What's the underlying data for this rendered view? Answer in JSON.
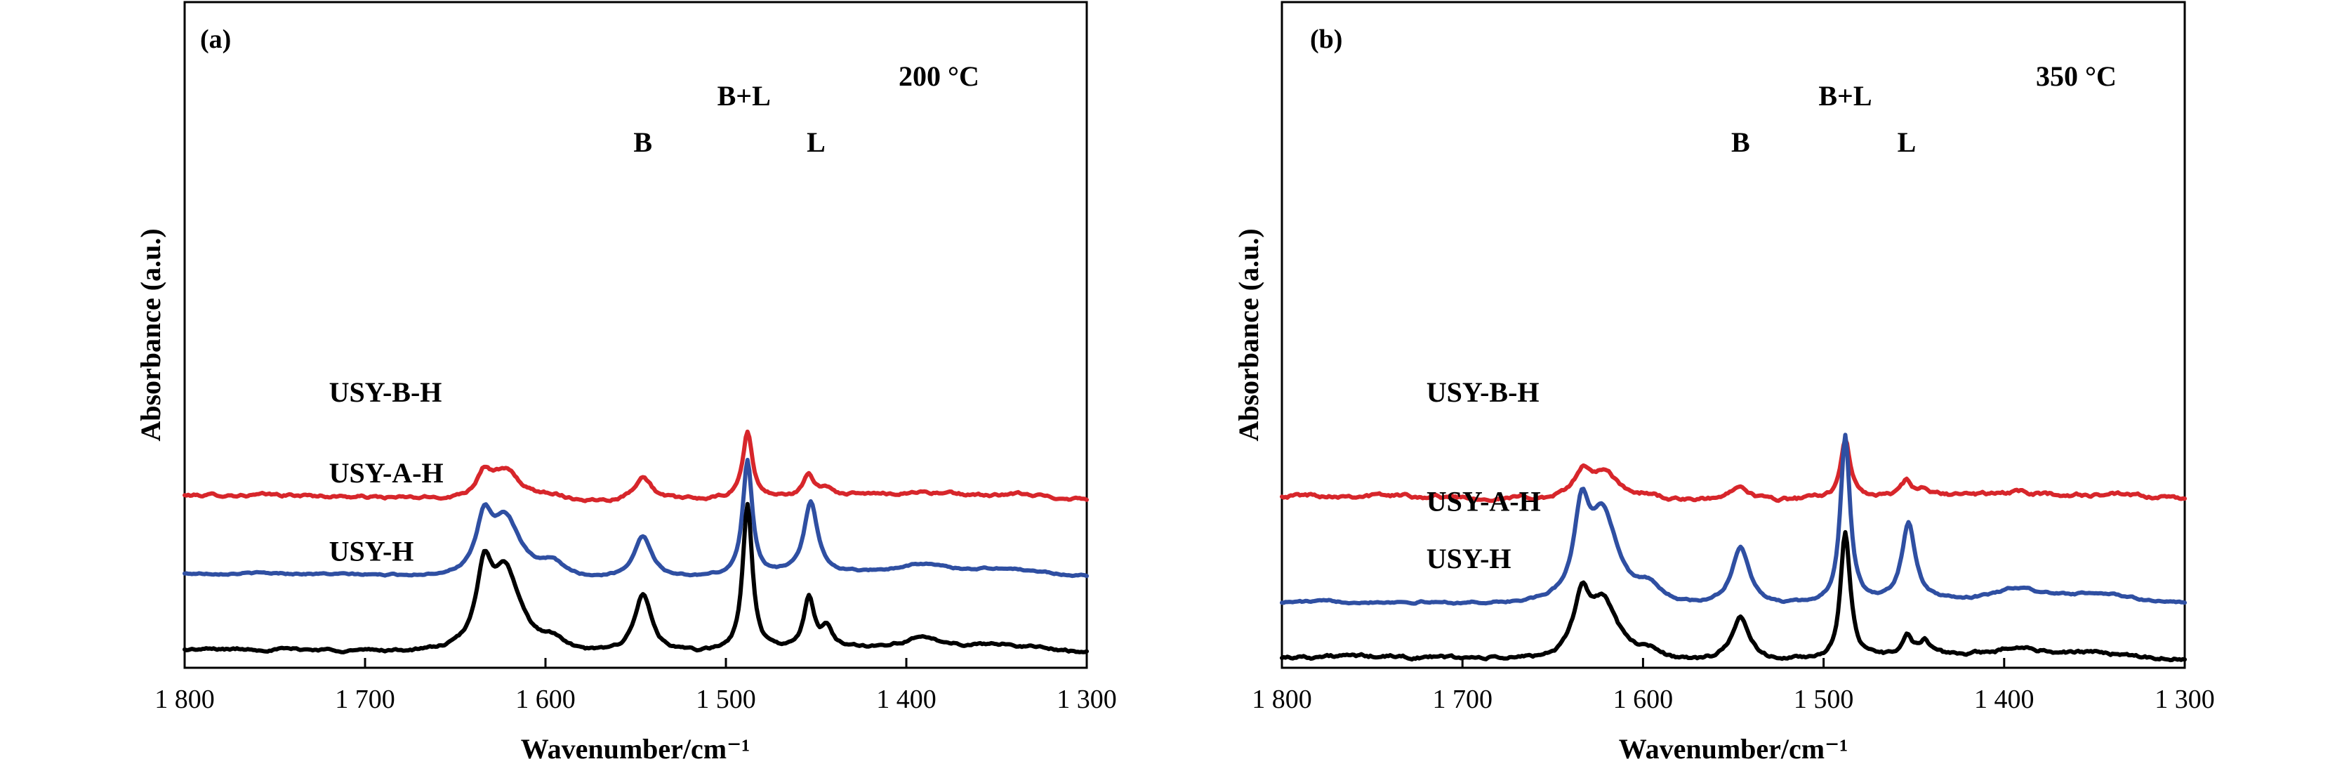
{
  "chart_data": [
    {
      "type": "line",
      "panel_label": "(a)",
      "temperature": "200 °C",
      "xlabel": "Wavenumber/cm⁻¹",
      "ylabel": "Absorbance (a.u.)",
      "xlim": [
        1800,
        1300
      ],
      "x_ticks": [
        1800,
        1700,
        1600,
        1500,
        1400,
        1300
      ],
      "x_tick_labels": [
        "1 800",
        "1 700",
        "1 600",
        "1 500",
        "1 400",
        "1 300"
      ],
      "grid": false,
      "annotations": [
        {
          "text": "B",
          "x": 1546
        },
        {
          "text": "B+L",
          "x": 1490
        },
        {
          "text": "L",
          "x": 1450
        }
      ],
      "series": [
        {
          "name": "USY-B-H",
          "color": "#d7262b",
          "baseline": 3.55,
          "scale": 0.55,
          "noise": 0.035,
          "peaks": [
            [
              1634,
              0.9,
              5
            ],
            [
              1622,
              1.1,
              10
            ],
            [
              1596,
              0.22,
              8
            ],
            [
              1546,
              0.95,
              6
            ],
            [
              1488,
              2.55,
              3.2
            ],
            [
              1454,
              0.8,
              3.5
            ],
            [
              1444,
              0.3,
              4
            ],
            [
              1392,
              0.12,
              14
            ],
            [
              1335,
              0.08,
              10
            ]
          ]
        },
        {
          "name": "USY-A-H",
          "color": "#2f4fa2",
          "baseline": 1.9,
          "scale": 0.95,
          "noise": 0.02,
          "peaks": [
            [
              1634,
              1.1,
              5
            ],
            [
              1622,
              1.3,
              10
            ],
            [
              1596,
              0.3,
              8
            ],
            [
              1546,
              0.95,
              6
            ],
            [
              1488,
              2.55,
              3.2
            ],
            [
              1453,
              1.6,
              4.5
            ],
            [
              1392,
              0.18,
              15
            ],
            [
              1345,
              0.12,
              25
            ]
          ]
        },
        {
          "name": "USY-H",
          "color": "#000000",
          "baseline": 0.3,
          "scale": 1.0,
          "noise": 0.03,
          "peaks": [
            [
              1634,
              1.5,
              5
            ],
            [
              1622,
              1.7,
              10
            ],
            [
              1596,
              0.25,
              8
            ],
            [
              1546,
              1.25,
              6
            ],
            [
              1488,
              3.1,
              3.2
            ],
            [
              1454,
              1.05,
              3.5
            ],
            [
              1444,
              0.4,
              4
            ],
            [
              1392,
              0.2,
              15
            ],
            [
              1345,
              0.12,
              25
            ]
          ]
        }
      ]
    },
    {
      "type": "line",
      "panel_label": "(b)",
      "temperature": "350 °C",
      "xlabel": "Wavenumber/cm⁻¹",
      "ylabel": "Absorbance (a.u.)",
      "xlim": [
        1800,
        1300
      ],
      "x_ticks": [
        1800,
        1700,
        1600,
        1500,
        1400,
        1300
      ],
      "x_tick_labels": [
        "1 800",
        "1 700",
        "1 600",
        "1 500",
        "1 400",
        "1 300"
      ],
      "grid": false,
      "annotations": [
        {
          "text": "B",
          "x": 1546
        },
        {
          "text": "B+L",
          "x": 1488
        },
        {
          "text": "L",
          "x": 1454
        }
      ],
      "series": [
        {
          "name": "USY-B-H",
          "color": "#d7262b",
          "baseline": 3.55,
          "scale": 0.55,
          "noise": 0.045,
          "peaks": [
            [
              1634,
              0.9,
              5
            ],
            [
              1622,
              1.05,
              10
            ],
            [
              1596,
              0.2,
              8
            ],
            [
              1546,
              0.7,
              6
            ],
            [
              1488,
              2.3,
              3.2
            ],
            [
              1454,
              0.55,
              3.5
            ],
            [
              1444,
              0.2,
              4
            ],
            [
              1392,
              0.1,
              14
            ],
            [
              1340,
              0.06,
              10
            ]
          ]
        },
        {
          "name": "USY-A-H",
          "color": "#2f4fa2",
          "baseline": 1.3,
          "scale": 1.0,
          "noise": 0.025,
          "peaks": [
            [
              1634,
              1.7,
              5
            ],
            [
              1622,
              1.9,
              10
            ],
            [
              1596,
              0.35,
              8
            ],
            [
              1546,
              1.25,
              6
            ],
            [
              1488,
              3.55,
              3.2
            ],
            [
              1453,
              1.65,
              4.5
            ],
            [
              1392,
              0.25,
              15
            ],
            [
              1345,
              0.17,
              25
            ]
          ]
        },
        {
          "name": "USY-H",
          "color": "#000000",
          "baseline": 0.15,
          "scale": 1.0,
          "noise": 0.04,
          "peaks": [
            [
              1634,
              1.15,
              5
            ],
            [
              1622,
              1.25,
              10
            ],
            [
              1596,
              0.2,
              8
            ],
            [
              1546,
              0.95,
              6
            ],
            [
              1488,
              2.65,
              3.2
            ],
            [
              1454,
              0.45,
              3.5
            ],
            [
              1444,
              0.3,
              4
            ],
            [
              1392,
              0.18,
              15
            ],
            [
              1345,
              0.1,
              25
            ]
          ]
        }
      ]
    }
  ]
}
